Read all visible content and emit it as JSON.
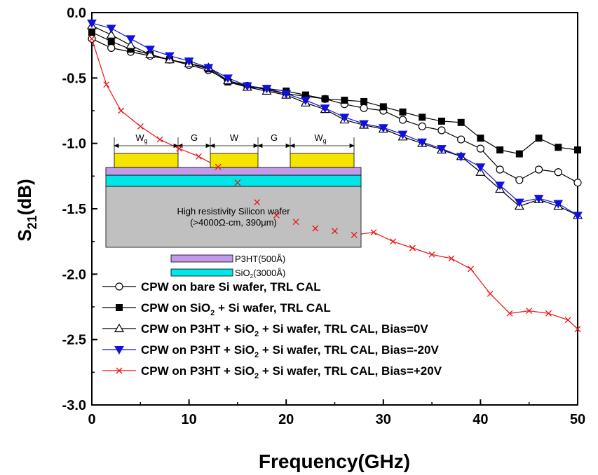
{
  "chart_data": {
    "type": "line",
    "xlabel": "Frequency(GHz)",
    "ylabel_main": "S",
    "ylabel_sub": "21",
    "ylabel_unit": "(dB)",
    "xlim": [
      0,
      50
    ],
    "ylim": [
      -3.0,
      0.0
    ],
    "x_ticks": [
      "0",
      "10",
      "20",
      "30",
      "40",
      "50"
    ],
    "y_ticks": [
      "0.0",
      "-0.5",
      "-1.0",
      "-1.5",
      "-2.0",
      "-2.5",
      "-3.0"
    ],
    "grid": false,
    "legend_position": "lower-left",
    "series": [
      {
        "name_main": "CPW on bare Si wafer, TRL CAL",
        "name_sub": "",
        "name_tail": "",
        "color": "#000000",
        "marker": "circle-open",
        "x": [
          0,
          2,
          4,
          6,
          8,
          10,
          12,
          14,
          16,
          18,
          20,
          22,
          24,
          26,
          28,
          30,
          32,
          34,
          36,
          38,
          40,
          42,
          44,
          46,
          48,
          50
        ],
        "y": [
          -0.2,
          -0.27,
          -0.3,
          -0.33,
          -0.36,
          -0.4,
          -0.44,
          -0.52,
          -0.56,
          -0.59,
          -0.62,
          -0.64,
          -0.66,
          -0.7,
          -0.73,
          -0.75,
          -0.82,
          -0.87,
          -0.9,
          -0.97,
          -1.04,
          -1.2,
          -1.28,
          -1.2,
          -1.22,
          -1.3
        ]
      },
      {
        "name_main": "CPW on SiO",
        "name_sub": "2",
        "name_tail": " + Si wafer, TRL CAL",
        "color": "#000000",
        "marker": "square-filled",
        "x": [
          0,
          2,
          4,
          6,
          8,
          10,
          12,
          14,
          16,
          18,
          20,
          22,
          24,
          26,
          28,
          30,
          32,
          34,
          36,
          38,
          40,
          42,
          44,
          46,
          48,
          50
        ],
        "y": [
          -0.15,
          -0.22,
          -0.28,
          -0.32,
          -0.36,
          -0.39,
          -0.43,
          -0.53,
          -0.57,
          -0.58,
          -0.6,
          -0.63,
          -0.66,
          -0.67,
          -0.68,
          -0.72,
          -0.76,
          -0.8,
          -0.83,
          -0.84,
          -0.96,
          -1.05,
          -1.08,
          -0.96,
          -1.03,
          -1.05
        ]
      },
      {
        "name_main": "CPW on P3HT + SiO",
        "name_sub": "2",
        "name_tail": " + Si wafer, TRL CAL, Bias=0V",
        "color": "#000000",
        "marker": "triangle-up-open",
        "x": [
          0,
          2,
          4,
          6,
          8,
          10,
          12,
          14,
          16,
          18,
          20,
          22,
          24,
          26,
          28,
          30,
          32,
          34,
          36,
          38,
          40,
          42,
          44,
          46,
          48,
          50
        ],
        "y": [
          -0.1,
          -0.17,
          -0.25,
          -0.32,
          -0.36,
          -0.39,
          -0.42,
          -0.52,
          -0.57,
          -0.6,
          -0.63,
          -0.69,
          -0.74,
          -0.82,
          -0.86,
          -0.89,
          -0.95,
          -1.0,
          -1.05,
          -1.1,
          -1.22,
          -1.35,
          -1.48,
          -1.43,
          -1.48,
          -1.55
        ]
      },
      {
        "name_main": "CPW on P3HT + SiO",
        "name_sub": "2",
        "name_tail": " + Si wafer, TRL CAL, Bias=-20V",
        "color": "#1010e0",
        "marker": "triangle-down-filled",
        "x": [
          0,
          2,
          4,
          6,
          8,
          10,
          12,
          14,
          16,
          18,
          20,
          22,
          24,
          26,
          28,
          30,
          32,
          34,
          36,
          38,
          40,
          42,
          44,
          46,
          48,
          50
        ],
        "y": [
          -0.08,
          -0.12,
          -0.2,
          -0.28,
          -0.33,
          -0.37,
          -0.42,
          -0.5,
          -0.56,
          -0.58,
          -0.62,
          -0.67,
          -0.73,
          -0.8,
          -0.85,
          -0.88,
          -0.93,
          -0.99,
          -1.04,
          -1.1,
          -1.18,
          -1.32,
          -1.45,
          -1.42,
          -1.46,
          -1.55
        ]
      },
      {
        "name_main": "CPW on P3HT + SiO",
        "name_sub": "2",
        "name_tail": " + Si wafer, TRL CAL, Bias=+20V",
        "color": "#ee1111",
        "marker": "x",
        "x": [
          0,
          1.5,
          3,
          5,
          7,
          9,
          11,
          13,
          15,
          17,
          19,
          21,
          23,
          25,
          27,
          29,
          31,
          33,
          35,
          37,
          39,
          41,
          43,
          45,
          47,
          49,
          50
        ],
        "y": [
          -0.2,
          -0.55,
          -0.75,
          -0.87,
          -0.97,
          -1.04,
          -1.1,
          -1.18,
          -1.3,
          -1.45,
          -1.55,
          -1.6,
          -1.65,
          -1.67,
          -1.7,
          -1.68,
          -1.75,
          -1.8,
          -1.85,
          -1.88,
          -1.96,
          -2.15,
          -2.3,
          -2.28,
          -2.3,
          -2.35,
          -2.42
        ]
      }
    ]
  },
  "inset": {
    "dimension_labels": [
      {
        "main": "W",
        "sub": "g"
      },
      {
        "main": "G",
        "sub": ""
      },
      {
        "main": "W",
        "sub": ""
      },
      {
        "main": "G",
        "sub": ""
      },
      {
        "main": "W",
        "sub": "g"
      }
    ],
    "substrate_line1": "High resistivity Silicon wafer",
    "substrate_line2": "(>4000Ω-cm, 390μm)",
    "layer_legend": [
      {
        "main": "P3HT(500Å)",
        "sub": "",
        "tail": "",
        "color": "#c39ae8"
      },
      {
        "main": "SiO",
        "sub": "2",
        "tail": "(3000Å)",
        "color": "#00e5e5"
      }
    ],
    "colors": {
      "conductor": "#f5e300",
      "p3ht": "#c39ae8",
      "sio2": "#00e5e5",
      "silicon": "#c0c0c0"
    }
  }
}
